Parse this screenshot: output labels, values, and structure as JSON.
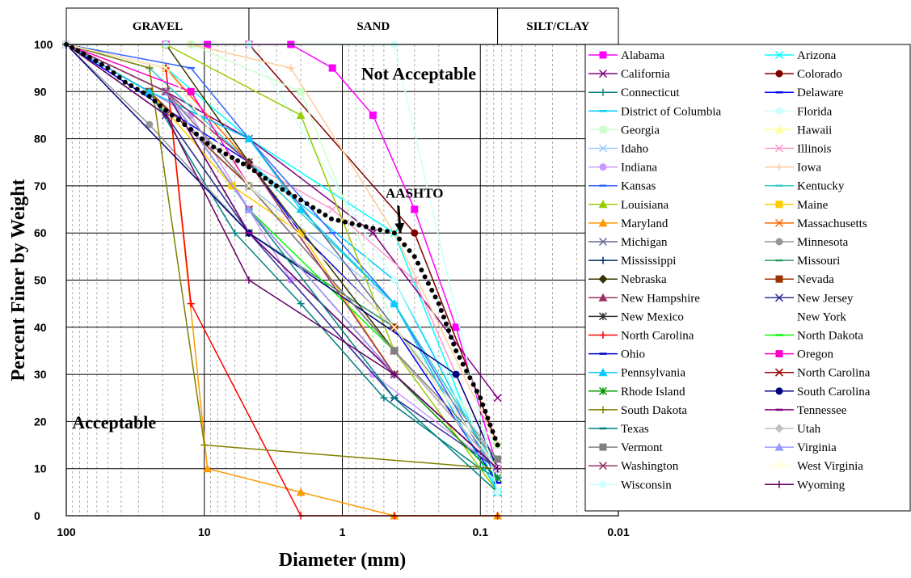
{
  "chart_data": {
    "type": "line",
    "x_scale": "log",
    "x_direction": "reversed",
    "xlabel": "Diameter (mm)",
    "ylabel": "Percent Finer by Weight",
    "xlim": [
      100,
      0.01
    ],
    "ylim": [
      0,
      100
    ],
    "x_ticks": [
      {
        "value": 100,
        "label": "100"
      },
      {
        "value": 10,
        "label": "10"
      },
      {
        "value": 1,
        "label": "1"
      },
      {
        "value": 0.1,
        "label": "0.1"
      },
      {
        "value": 0.01,
        "label": "0.01"
      }
    ],
    "y_ticks": [
      {
        "value": 0,
        "label": "0"
      },
      {
        "value": 10,
        "label": "10"
      },
      {
        "value": 20,
        "label": "20"
      },
      {
        "value": 30,
        "label": "30"
      },
      {
        "value": 40,
        "label": "40"
      },
      {
        "value": 50,
        "label": "50"
      },
      {
        "value": 60,
        "label": "60"
      },
      {
        "value": 70,
        "label": "70"
      },
      {
        "value": 80,
        "label": "80"
      },
      {
        "value": 90,
        "label": "90"
      },
      {
        "value": 100,
        "label": "100"
      }
    ],
    "grid": "major and minor",
    "legend_position": "right",
    "soil_bands": [
      {
        "label": "GRAVEL",
        "from": 100,
        "to": 4.75
      },
      {
        "label": "SAND",
        "from": 4.75,
        "to": 0.075
      },
      {
        "label": "SILT/CLAY",
        "from": 0.075,
        "to": 0.01
      }
    ],
    "annotations": [
      {
        "text": "Not Acceptable",
        "x": 0.28,
        "y": 92.5,
        "size": 22
      },
      {
        "text": "Acceptable",
        "x": 45,
        "y": 18.5,
        "size": 22
      },
      {
        "text": "AASHTO",
        "x": 0.3,
        "y": 67.5,
        "size": 17,
        "arrow_to": {
          "x": 0.38,
          "y": 60
        }
      }
    ],
    "series": [
      {
        "name": "Alabama",
        "color": "#FF00FF",
        "marker": "square",
        "x": [
          100,
          19,
          9.5,
          4.75,
          2.36,
          1.18,
          0.6,
          0.3,
          0.15,
          0.075
        ],
        "y": [
          100,
          100,
          100,
          100,
          100,
          95,
          85,
          65,
          40,
          10
        ]
      },
      {
        "name": "Arizona",
        "color": "#00FFFF",
        "marker": "x",
        "x": [
          100,
          19,
          4.75,
          0.42,
          0.075
        ],
        "y": [
          100,
          95,
          80,
          60,
          5
        ]
      },
      {
        "name": "California",
        "color": "#800080",
        "marker": "x",
        "x": [
          100,
          19,
          4.75,
          0.6,
          0.075
        ],
        "y": [
          100,
          90,
          80,
          60,
          25
        ]
      },
      {
        "name": "Colorado",
        "color": "#800000",
        "marker": "circle",
        "x": [
          100,
          4.75,
          0.3,
          0.075
        ],
        "y": [
          100,
          100,
          60,
          15
        ]
      },
      {
        "name": "Connecticut",
        "color": "#008080",
        "marker": "plus",
        "x": [
          100,
          25,
          6,
          2,
          0.5,
          0.1,
          0.075
        ],
        "y": [
          100,
          90,
          60,
          45,
          25,
          10,
          8
        ]
      },
      {
        "name": "Delaware",
        "color": "#0000FF",
        "marker": "dash",
        "x": [
          100,
          4.75,
          2,
          0.425,
          0.075
        ],
        "y": [
          100,
          75,
          60,
          40,
          7
        ]
      },
      {
        "name": "District of Columbia",
        "color": "#00CCFF",
        "marker": "dash",
        "x": [
          100,
          19,
          4.75,
          0.42,
          0.075
        ],
        "y": [
          100,
          90,
          75,
          50,
          8
        ]
      },
      {
        "name": "Florida",
        "color": "#CCFFFF",
        "marker": "circle",
        "x": [
          100,
          4.75,
          0.42,
          0.075
        ],
        "y": [
          100,
          100,
          50,
          10
        ]
      },
      {
        "name": "Georgia",
        "color": "#CCFFCC",
        "marker": "square",
        "x": [
          100,
          12.5,
          2,
          0.42,
          0.075
        ],
        "y": [
          100,
          100,
          90,
          40,
          15
        ]
      },
      {
        "name": "Hawaii",
        "color": "#FFFF99",
        "marker": "triangle",
        "x": [
          100,
          19,
          4.75,
          0.42,
          0.075
        ],
        "y": [
          100,
          95,
          75,
          45,
          10
        ]
      },
      {
        "name": "Idaho",
        "color": "#99CCFF",
        "marker": "x",
        "x": [
          100,
          25,
          4.75,
          0.42,
          0.075
        ],
        "y": [
          100,
          90,
          70,
          45,
          10
        ]
      },
      {
        "name": "Illinois",
        "color": "#FF99CC",
        "marker": "x",
        "x": [
          100,
          19,
          4.75,
          1.18,
          0.3,
          0.075
        ],
        "y": [
          100,
          90,
          75,
          65,
          50,
          10
        ]
      },
      {
        "name": "Indiana",
        "color": "#CC99FF",
        "marker": "circle",
        "x": [
          100,
          12.5,
          4.75,
          2.36,
          0.6,
          0.075
        ],
        "y": [
          100,
          85,
          65,
          50,
          30,
          10
        ]
      },
      {
        "name": "Iowa",
        "color": "#FFCC99",
        "marker": "plus",
        "x": [
          100,
          12.5,
          2.36,
          0.42,
          0.075
        ],
        "y": [
          100,
          100,
          95,
          60,
          15
        ]
      },
      {
        "name": "Kansas",
        "color": "#3366FF",
        "marker": "dash",
        "x": [
          100,
          12.5,
          4.75,
          1.18,
          0.42,
          0.075
        ],
        "y": [
          100,
          95,
          80,
          60,
          45,
          8
        ]
      },
      {
        "name": "Kentucky",
        "color": "#33CCCC",
        "marker": "dash",
        "x": [
          100,
          25,
          4.75,
          0.42,
          0.075
        ],
        "y": [
          100,
          95,
          75,
          45,
          10
        ]
      },
      {
        "name": "Louisiana",
        "color": "#99CC00",
        "marker": "triangle",
        "x": [
          100,
          19,
          2,
          0.42,
          0.075
        ],
        "y": [
          100,
          100,
          85,
          35,
          5
        ]
      },
      {
        "name": "Maine",
        "color": "#FFCC00",
        "marker": "square",
        "x": [
          100,
          25,
          6.3,
          2,
          0.42,
          0.075
        ],
        "y": [
          100,
          90,
          70,
          60,
          30,
          10
        ]
      },
      {
        "name": "Maryland",
        "color": "#FF9900",
        "marker": "triangle",
        "x": [
          100,
          19,
          9.5,
          2,
          0.42,
          0.075
        ],
        "y": [
          100,
          95,
          10,
          5,
          0,
          0
        ]
      },
      {
        "name": "Massachusetts",
        "color": "#FF6600",
        "marker": "x",
        "x": [
          100,
          19,
          4.75,
          0.42,
          0.075
        ],
        "y": [
          100,
          95,
          75,
          30,
          10
        ]
      },
      {
        "name": "Michigan",
        "color": "#666699",
        "marker": "x",
        "x": [
          100,
          25,
          4.75,
          0.42,
          0.075
        ],
        "y": [
          100,
          90,
          80,
          40,
          10
        ]
      },
      {
        "name": "Minnesota",
        "color": "#969696",
        "marker": "circle",
        "x": [
          100,
          25,
          4.75,
          0.42,
          0.075
        ],
        "y": [
          100,
          83,
          60,
          40,
          12
        ]
      },
      {
        "name": "Mississippi",
        "color": "#003366",
        "marker": "plus",
        "x": [
          100,
          19,
          4.75,
          0.42,
          0.075
        ],
        "y": [
          100,
          90,
          60,
          30,
          10
        ]
      },
      {
        "name": "Missouri",
        "color": "#339966",
        "marker": "dash",
        "x": [
          100,
          25,
          4.75,
          0.42,
          0.075
        ],
        "y": [
          100,
          90,
          60,
          40,
          10
        ]
      },
      {
        "name": "Nebraska",
        "color": "#333300",
        "marker": "diamond",
        "x": [
          100,
          19,
          4.75,
          0.42,
          0.075
        ],
        "y": [
          100,
          100,
          75,
          35,
          10
        ]
      },
      {
        "name": "Nevada",
        "color": "#993300",
        "marker": "square",
        "x": [
          100,
          25,
          4.75,
          0.42,
          0.075
        ],
        "y": [
          100,
          90,
          70,
          40,
          10
        ]
      },
      {
        "name": "New Hampshire",
        "color": "#993366",
        "marker": "triangle",
        "x": [
          100,
          19,
          4.75,
          0.42,
          0.075
        ],
        "y": [
          100,
          90,
          70,
          35,
          10
        ]
      },
      {
        "name": "New Jersey",
        "color": "#333399",
        "marker": "x",
        "x": [
          100,
          19,
          4.75,
          0.42,
          0.075
        ],
        "y": [
          100,
          85,
          60,
          25,
          10
        ]
      },
      {
        "name": "New Mexico",
        "color": "#333333",
        "marker": "asterisk",
        "x": [
          100,
          19,
          4.75,
          0.42,
          0.075
        ],
        "y": [
          100,
          95,
          70,
          35,
          10
        ]
      },
      {
        "name": "North Carolina",
        "color": "#FF0000",
        "marker": "plus",
        "x": [
          100,
          19,
          12.5,
          2,
          0.42,
          0.075
        ],
        "y": [
          100,
          95,
          45,
          0,
          0,
          0
        ]
      },
      {
        "name": "North Dakota",
        "color": "#00FF00",
        "marker": "dash",
        "x": [
          100,
          19,
          4.75,
          0.42,
          0.075
        ],
        "y": [
          100,
          90,
          65,
          35,
          10
        ]
      },
      {
        "name": "Ohio",
        "color": "#0000CC",
        "marker": "dash",
        "x": [
          100,
          19,
          4.75,
          0.42,
          0.075
        ],
        "y": [
          100,
          90,
          60,
          30,
          10
        ]
      },
      {
        "name": "Oregon",
        "color": "#FF00CC",
        "marker": "square",
        "x": [
          100,
          12.5,
          4.75,
          0.42,
          0.075
        ],
        "y": [
          100,
          90,
          70,
          35,
          10
        ]
      },
      {
        "name": "Pennsylvania",
        "color": "#00CCFF",
        "marker": "triangle",
        "x": [
          100,
          25,
          4.75,
          2,
          0.42,
          0.075
        ],
        "y": [
          100,
          90,
          80,
          65,
          45,
          5
        ]
      },
      {
        "name": "North Carolina",
        "color": "#990000",
        "marker": "x",
        "x": [
          100,
          19,
          4.75,
          0.42,
          0.075
        ],
        "y": [
          100,
          90,
          65,
          30,
          10
        ]
      },
      {
        "name": "Rhode Island",
        "color": "#009900",
        "marker": "asterisk",
        "x": [
          100,
          19,
          4.75,
          0.42,
          0.075
        ],
        "y": [
          100,
          90,
          60,
          30,
          8
        ]
      },
      {
        "name": "South Carolina",
        "color": "#000080",
        "marker": "circle",
        "x": [
          100,
          4.75,
          0.15,
          0.075
        ],
        "y": [
          100,
          60,
          30,
          10
        ]
      },
      {
        "name": "South Dakota",
        "color": "#808000",
        "marker": "plus",
        "x": [
          100,
          25,
          10,
          0.075
        ],
        "y": [
          100,
          95,
          15,
          10
        ]
      },
      {
        "name": "Tennessee",
        "color": "#800080",
        "marker": "dash",
        "x": [
          100,
          19,
          4.75,
          0.42,
          0.075
        ],
        "y": [
          100,
          90,
          60,
          30,
          10
        ]
      },
      {
        "name": "Texas",
        "color": "#008080",
        "marker": "dash",
        "x": [
          100,
          19,
          4.75,
          0.42,
          0.075
        ],
        "y": [
          100,
          90,
          65,
          25,
          5
        ]
      },
      {
        "name": "Utah",
        "color": "#C0C0C0",
        "marker": "diamond",
        "x": [
          100,
          19,
          4.75,
          0.42,
          0.075
        ],
        "y": [
          100,
          90,
          70,
          35,
          10
        ]
      },
      {
        "name": "Vermont",
        "color": "#808080",
        "marker": "square",
        "x": [
          100,
          19,
          4.75,
          0.42,
          0.075
        ],
        "y": [
          100,
          90,
          70,
          35,
          12
        ]
      },
      {
        "name": "Virginia",
        "color": "#9999FF",
        "marker": "triangle",
        "x": [
          100,
          19,
          4.75,
          0.42,
          0.075
        ],
        "y": [
          100,
          90,
          65,
          30,
          10
        ]
      },
      {
        "name": "Washington",
        "color": "#993366",
        "marker": "x",
        "x": [
          100,
          19,
          4.75,
          0.42,
          0.075
        ],
        "y": [
          100,
          90,
          75,
          30,
          10
        ]
      },
      {
        "name": "West Virginia",
        "color": "#FFFFCC",
        "marker": "x",
        "x": [
          100,
          19,
          4.75,
          0.42,
          0.075
        ],
        "y": [
          100,
          95,
          70,
          40,
          10
        ]
      },
      {
        "name": "Wisconsin",
        "color": "#CCFFFF",
        "marker": "circle",
        "x": [
          100,
          19,
          4.75,
          0.42,
          0.075
        ],
        "y": [
          100,
          100,
          100,
          100,
          5
        ]
      },
      {
        "name": "Wyoming",
        "color": "#660066",
        "marker": "plus",
        "x": [
          100,
          19,
          4.75,
          0.42,
          0.075
        ],
        "y": [
          100,
          85,
          50,
          30,
          10
        ]
      },
      {
        "name": "New York",
        "color": "#FFFFFF",
        "marker": "none",
        "x": [],
        "y": []
      },
      {
        "name": "AASHTO",
        "color": "#000000",
        "marker": "dot",
        "legend": false,
        "dotted": true,
        "x": [
          100,
          75,
          50,
          37.5,
          25,
          19,
          12.5,
          9.5,
          6.3,
          4.75,
          3,
          2,
          1.2,
          0.6,
          0.42,
          0.3,
          0.2,
          0.15,
          0.1,
          0.075
        ],
        "y": [
          100,
          98,
          95,
          92,
          89,
          86,
          82,
          79,
          76,
          74,
          70,
          67,
          63,
          61,
          60,
          55,
          45,
          35,
          25,
          15
        ]
      }
    ]
  }
}
